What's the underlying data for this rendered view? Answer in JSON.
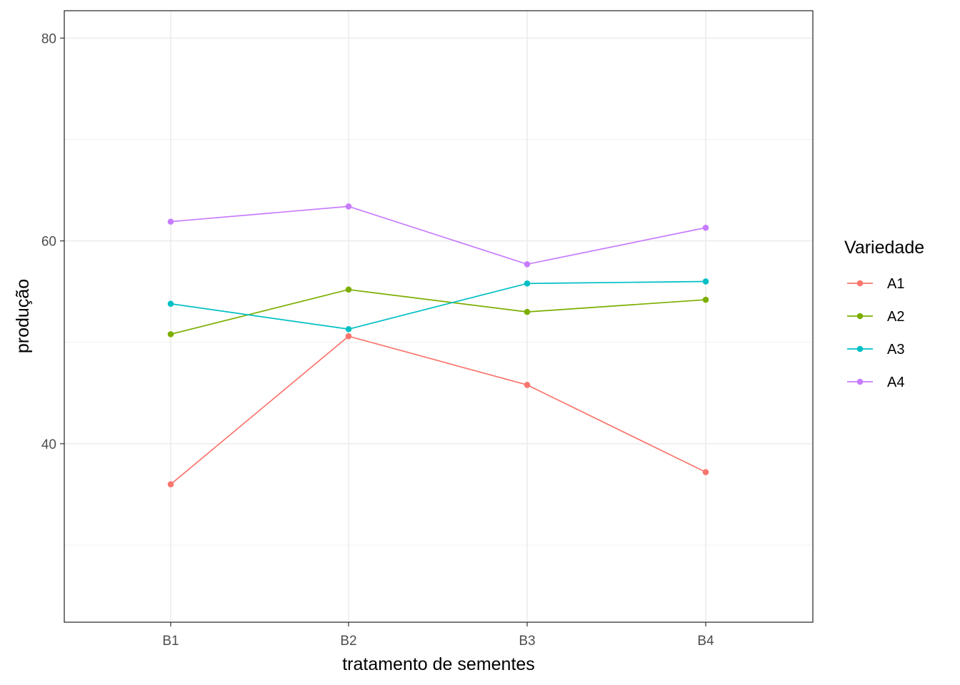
{
  "chart_data": {
    "type": "line",
    "categories": [
      "B1",
      "B2",
      "B3",
      "B4"
    ],
    "xlabel": "tratamento de sementes",
    "ylabel": "produção",
    "ylim": [
      22.4,
      82.7
    ],
    "yticks": [
      40,
      60,
      80
    ],
    "y_minor_gridlines": [
      30,
      50,
      70
    ],
    "grid": true,
    "legend_title": "Variedade",
    "legend_position": "right",
    "series": [
      {
        "name": "A1",
        "color": "#F8766D",
        "values": [
          36.0,
          50.6,
          45.8,
          37.2
        ]
      },
      {
        "name": "A2",
        "color": "#7CAE00",
        "values": [
          50.8,
          55.2,
          53.0,
          54.2
        ]
      },
      {
        "name": "A3",
        "color": "#00BFC4",
        "values": [
          53.8,
          51.3,
          55.8,
          56.0
        ]
      },
      {
        "name": "A4",
        "color": "#C77CFF",
        "values": [
          61.9,
          63.4,
          57.7,
          61.3
        ]
      }
    ]
  }
}
